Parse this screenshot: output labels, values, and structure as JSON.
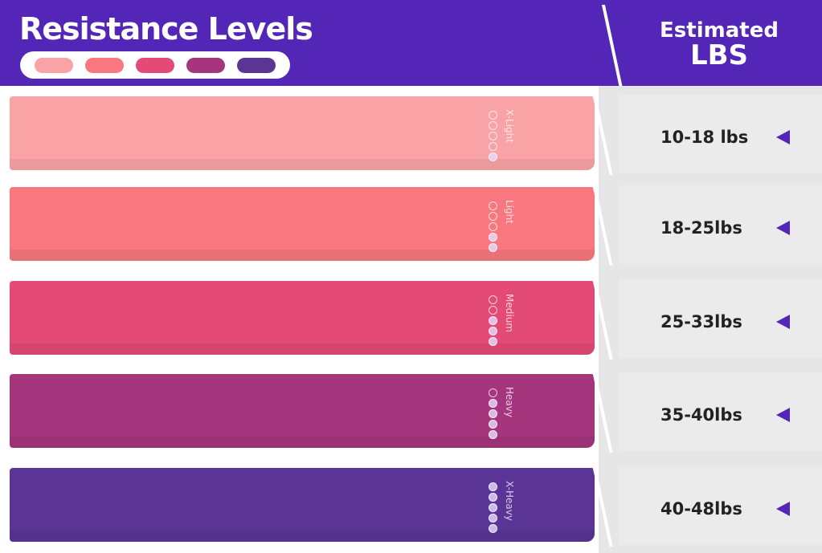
{
  "header": {
    "title": "Resistance Levels",
    "estimated": "Estimated",
    "lbs": "LBS"
  },
  "colors": {
    "accent": "#5326b8",
    "swatches": [
      "#f9a3a7",
      "#f9787f",
      "#e34a75",
      "#a5357d",
      "#5a3596"
    ]
  },
  "bands": [
    {
      "label": "X-Light",
      "filled_dots": 1,
      "total_dots": 5,
      "range": "10-18 lbs",
      "color": "#f9a3a7"
    },
    {
      "label": "Light",
      "filled_dots": 2,
      "total_dots": 5,
      "range": "18-25lbs",
      "color": "#f9787f"
    },
    {
      "label": "Medium",
      "filled_dots": 3,
      "total_dots": 5,
      "range": "25-33lbs",
      "color": "#e34a75"
    },
    {
      "label": "Heavy",
      "filled_dots": 4,
      "total_dots": 5,
      "range": "35-40lbs",
      "color": "#a5357d"
    },
    {
      "label": "X-Heavy",
      "filled_dots": 5,
      "total_dots": 5,
      "range": "40-48lbs",
      "color": "#5a3596"
    }
  ],
  "icons": {
    "pointer": "triangle-left-icon"
  }
}
